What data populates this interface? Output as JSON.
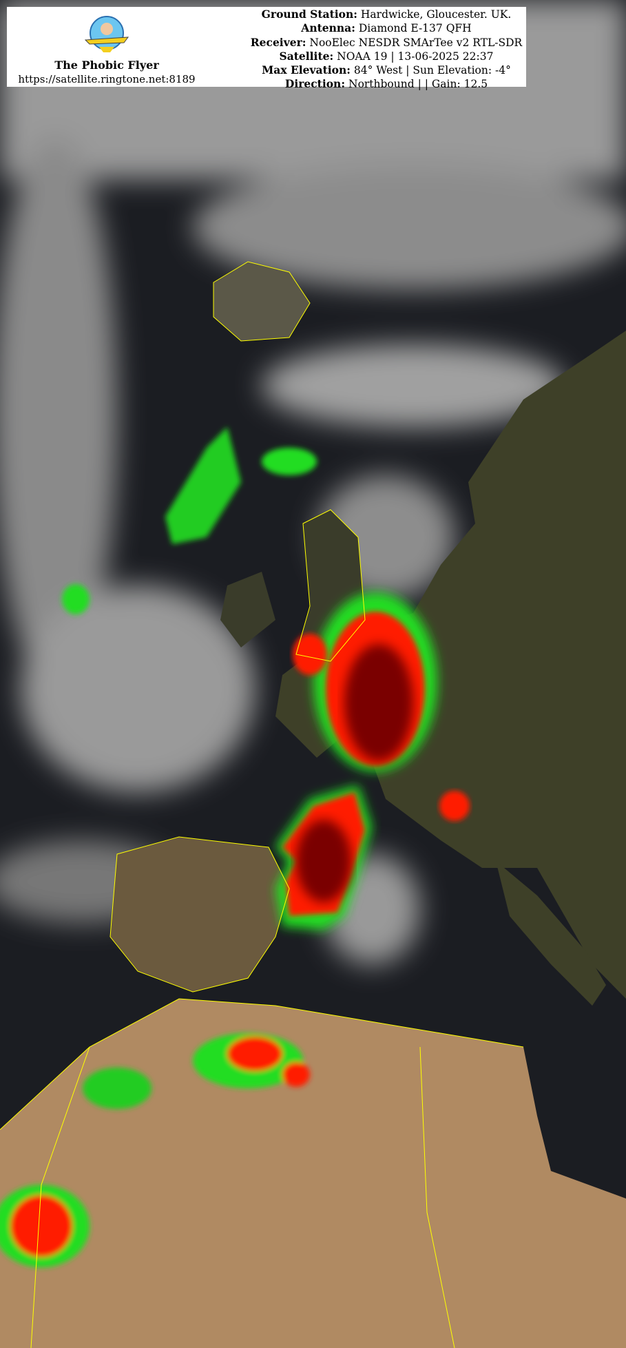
{
  "brand": {
    "name": "The Phobic Flyer",
    "url": "https://satellite.ringtone.net:8189",
    "logo_text": "The Phobic Flyer"
  },
  "info": [
    {
      "label": "Ground Station:",
      "value": "Hardwicke, Gloucester. UK."
    },
    {
      "label": "Antenna:",
      "value": "Diamond E-137 QFH"
    },
    {
      "label": "Receiver:",
      "value": "NooElec NESDR SMArTee v2 RTL-SDR"
    },
    {
      "label": "Satellite:",
      "value": "NOAA 19 | 13-06-2025 22:37"
    },
    {
      "label": "Max Elevation:",
      "value": "84° West | Sun Elevation: -4°"
    },
    {
      "label": "Direction:",
      "value": "Northbound | | Gain: 12.5"
    }
  ],
  "colors": {
    "ocean": "#1b1d22",
    "cloud": "#b8b8b8",
    "land_europe": "#3e4028",
    "land_africa": "#b08a62",
    "storm_core": "#7a0000",
    "storm_red": "#ff1a00",
    "storm_rim": "#22dd22",
    "borders": "#ffff00"
  }
}
